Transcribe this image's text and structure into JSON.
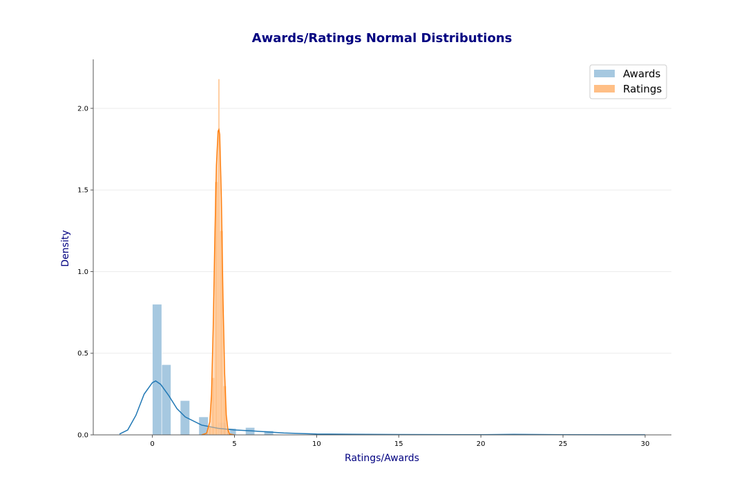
{
  "chart_data": {
    "type": "bar",
    "title": "Awards/Ratings Normal Distributions",
    "xlabel": "Ratings/Awards",
    "ylabel": "Density",
    "xlim": [
      -3.6,
      31.6
    ],
    "ylim": [
      0,
      2.3
    ],
    "xticks": [
      0,
      5,
      10,
      15,
      20,
      25,
      30
    ],
    "yticks": [
      0.0,
      0.5,
      1.0,
      1.5,
      2.0
    ],
    "xtick_labels": [
      "0",
      "5",
      "10",
      "15",
      "20",
      "25",
      "30"
    ],
    "ytick_labels": [
      "0.0",
      "0.5",
      "1.0",
      "1.5",
      "2.0"
    ],
    "grid": true,
    "grid_axis": "y",
    "legend_position": "top-right",
    "series": [
      {
        "name": "Awards",
        "color": "#1f77b4",
        "hist_color": "#a6c8e0",
        "bins": [
          {
            "x0": 0.0,
            "x1": 0.57,
            "density": 0.8
          },
          {
            "x0": 0.57,
            "x1": 1.13,
            "density": 0.43
          },
          {
            "x0": 1.13,
            "x1": 1.7,
            "density": 0.0
          },
          {
            "x0": 1.7,
            "x1": 2.27,
            "density": 0.21
          },
          {
            "x0": 2.27,
            "x1": 2.83,
            "density": 0.0
          },
          {
            "x0": 2.83,
            "x1": 3.4,
            "density": 0.11
          },
          {
            "x0": 3.4,
            "x1": 3.97,
            "density": 0.0
          },
          {
            "x0": 3.97,
            "x1": 4.53,
            "density": 0.075
          },
          {
            "x0": 4.53,
            "x1": 5.1,
            "density": 0.04
          },
          {
            "x0": 5.1,
            "x1": 5.67,
            "density": 0.0
          },
          {
            "x0": 5.67,
            "x1": 6.23,
            "density": 0.045
          },
          {
            "x0": 6.23,
            "x1": 6.8,
            "density": 0.0
          },
          {
            "x0": 6.8,
            "x1": 7.37,
            "density": 0.025
          }
        ],
        "kde": {
          "x": [
            -2.0,
            -1.5,
            -1.0,
            -0.5,
            0.0,
            0.2,
            0.5,
            1.0,
            1.5,
            2.0,
            3.0,
            4.0,
            5.0,
            6.0,
            7.0,
            8.0,
            10.0,
            15.0,
            20.0,
            22.0,
            25.0,
            30.0
          ],
          "y": [
            0.005,
            0.03,
            0.12,
            0.25,
            0.32,
            0.33,
            0.31,
            0.24,
            0.16,
            0.11,
            0.06,
            0.04,
            0.03,
            0.025,
            0.018,
            0.012,
            0.005,
            0.002,
            0.001,
            0.003,
            0.001,
            0.0005
          ]
        }
      },
      {
        "name": "Ratings",
        "color": "#ff7f0e",
        "hist_color": "#ffbf86",
        "bins": [
          {
            "x0": 3.4,
            "x1": 3.6,
            "density": 0.05
          },
          {
            "x0": 3.6,
            "x1": 3.8,
            "density": 0.35
          },
          {
            "x0": 3.8,
            "x1": 4.0,
            "density": 1.55
          },
          {
            "x0": 4.0,
            "x1": 4.1,
            "density": 2.18
          },
          {
            "x0": 4.1,
            "x1": 4.3,
            "density": 1.25
          },
          {
            "x0": 4.3,
            "x1": 4.5,
            "density": 0.3
          },
          {
            "x0": 4.5,
            "x1": 4.7,
            "density": 0.03
          }
        ],
        "kde": {
          "x": [
            3.0,
            3.3,
            3.5,
            3.6,
            3.7,
            3.8,
            3.9,
            4.0,
            4.05,
            4.1,
            4.2,
            4.3,
            4.4,
            4.5,
            4.6,
            4.7,
            5.0
          ],
          "y": [
            0.0,
            0.01,
            0.08,
            0.25,
            0.65,
            1.2,
            1.65,
            1.86,
            1.87,
            1.84,
            1.45,
            0.85,
            0.38,
            0.12,
            0.03,
            0.005,
            0.0
          ]
        }
      }
    ]
  }
}
